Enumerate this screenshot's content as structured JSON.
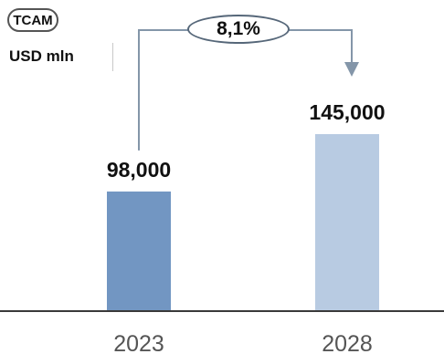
{
  "header": {
    "badge": "TCAM",
    "unit": "USD mln"
  },
  "growth": {
    "label": "8,1%"
  },
  "colors": {
    "bar_2023": "#7296c2",
    "bar_2028": "#b8cbe2",
    "connector": "#8496a9",
    "axis": "#3a3a3a"
  },
  "chart_data": {
    "type": "bar",
    "categories": [
      "2023",
      "2028"
    ],
    "values": [
      98000,
      145000
    ],
    "value_labels": [
      "98,000",
      "145,000"
    ],
    "ylim": [
      0,
      145000
    ],
    "grid": false,
    "legend": "none"
  }
}
